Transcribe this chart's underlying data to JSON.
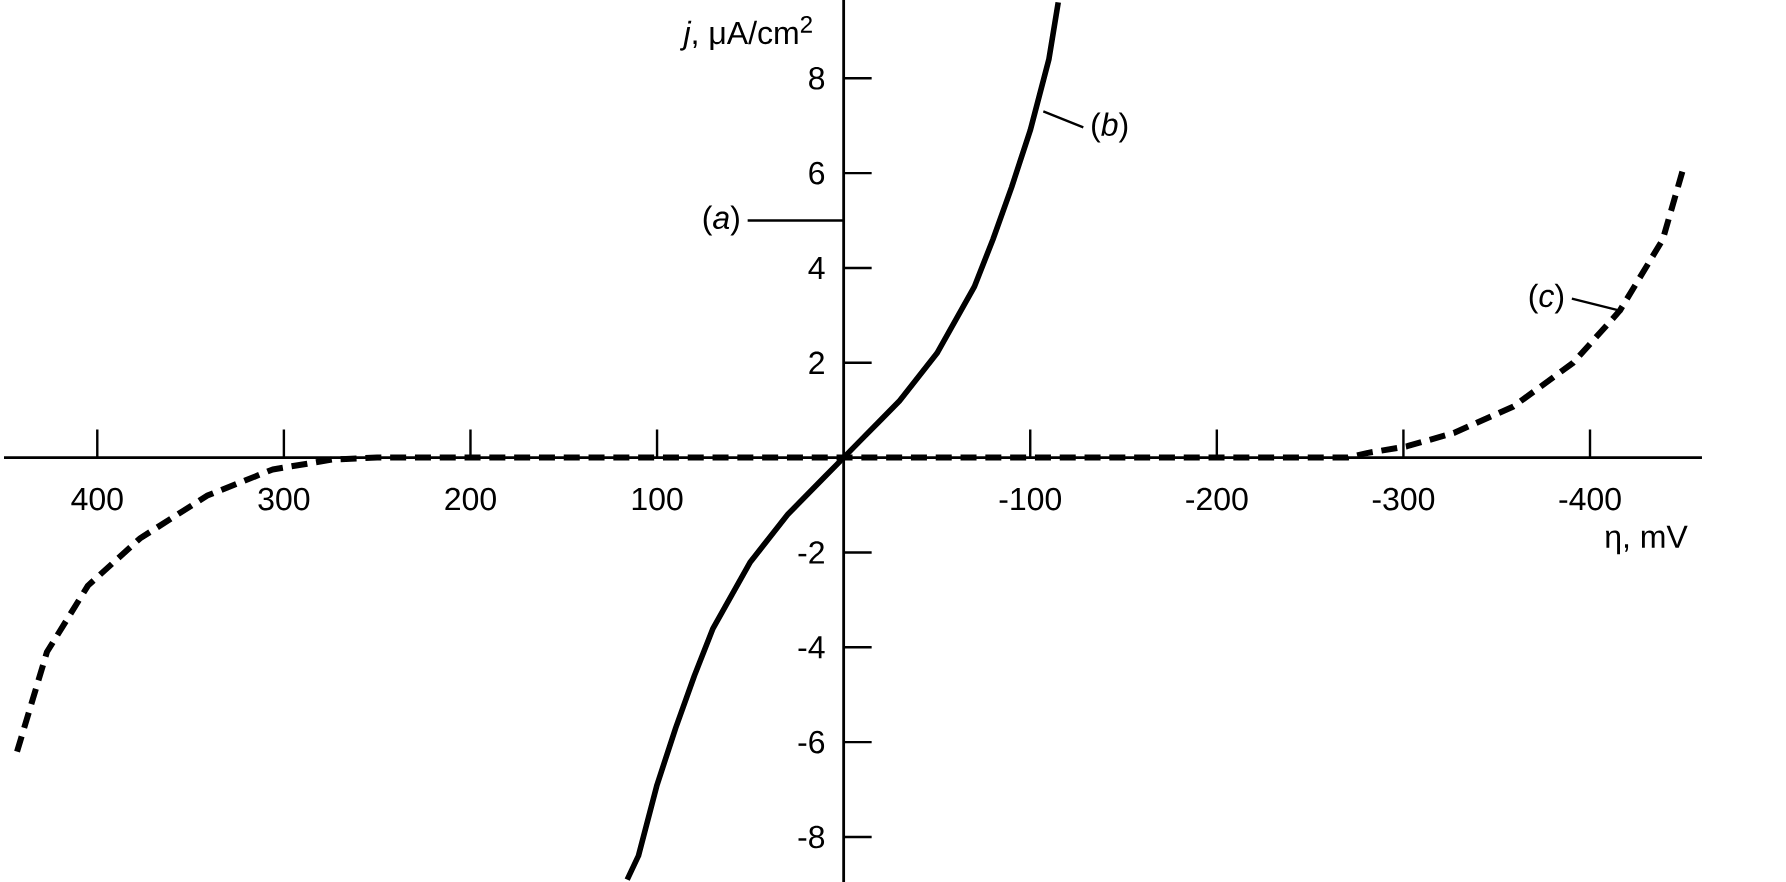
{
  "chart_data": {
    "type": "line",
    "xlabel": "η, mV",
    "ylabel": "*j*, μA/cm$^{2}$",
    "xlim": [
      450,
      -460
    ],
    "ylim": [
      -8.95,
      9.65
    ],
    "xticks": [
      400,
      300,
      200,
      100,
      -100,
      -200,
      -300,
      -400
    ],
    "yticks": [
      -8,
      -6,
      -4,
      -2,
      2,
      4,
      6,
      8
    ],
    "grid": false,
    "marker": "none",
    "series": [
      {
        "color": "#000000",
        "line_style": "solid",
        "x": [
          116,
          110,
          100,
          90,
          80,
          70,
          60,
          50,
          40,
          30,
          20,
          10,
          0,
          -10,
          -20,
          -30,
          -40,
          -50,
          -60,
          -70,
          -80,
          -90,
          -100,
          -110,
          -115
        ],
        "values": [
          -8.9,
          -8.4,
          -6.9,
          -5.7,
          -4.6,
          -3.6,
          -2.9,
          -2.2,
          -1.7,
          -1.2,
          -0.8,
          -0.4,
          0,
          0.4,
          0.8,
          1.2,
          1.7,
          2.2,
          2.9,
          3.6,
          4.6,
          5.7,
          6.9,
          8.4,
          9.6
        ]
      },
      {
        "color": "#000000",
        "line_style": "dashed",
        "x": [
          443,
          427,
          405,
          377,
          341,
          306,
          274,
          250,
          0,
          -270,
          -281,
          -302,
          -327,
          -359,
          -391,
          -416,
          -439,
          -450
        ],
        "values": [
          -6.2,
          -4.1,
          -2.7,
          -1.7,
          -0.8,
          -0.25,
          -0.04,
          0,
          0,
          0,
          0.1,
          0.24,
          0.52,
          1.08,
          2.0,
          3.1,
          4.6,
          6.1
        ]
      }
    ],
    "annotations": [
      "(*a*)",
      {
        "text": "(*b*)",
        "x": -107,
        "y": 7.3
      },
      {
        "text": "(*c*)",
        "x": -416,
        "y": 3.1
      }
    ]
  }
}
